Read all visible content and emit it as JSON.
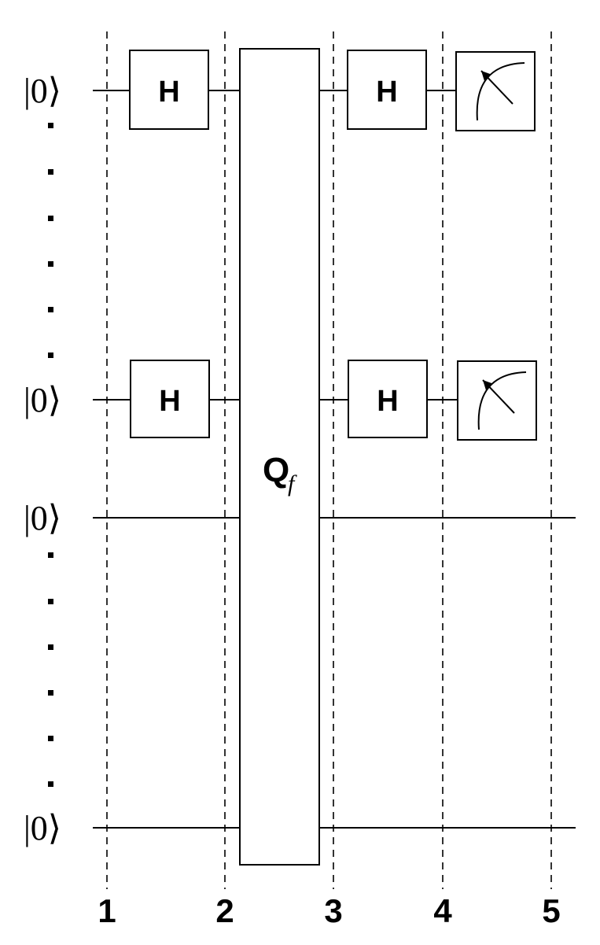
{
  "qubits": [
    {
      "label": "|0⟩",
      "gates": [
        "H",
        "H"
      ],
      "measured": true
    },
    {
      "label": "|0⟩",
      "gates": [
        "H",
        "H"
      ],
      "measured": true
    },
    {
      "label": "|0⟩",
      "gates": [],
      "measured": false
    },
    {
      "label": "|0⟩",
      "gates": [],
      "measured": false
    }
  ],
  "ellipsis_dots": "·",
  "oracle": {
    "label": "Q",
    "subscript": "f"
  },
  "gate_label": "H",
  "steps": [
    "1",
    "2",
    "3",
    "4",
    "5"
  ],
  "icons": {
    "measurement": "meter-icon"
  }
}
